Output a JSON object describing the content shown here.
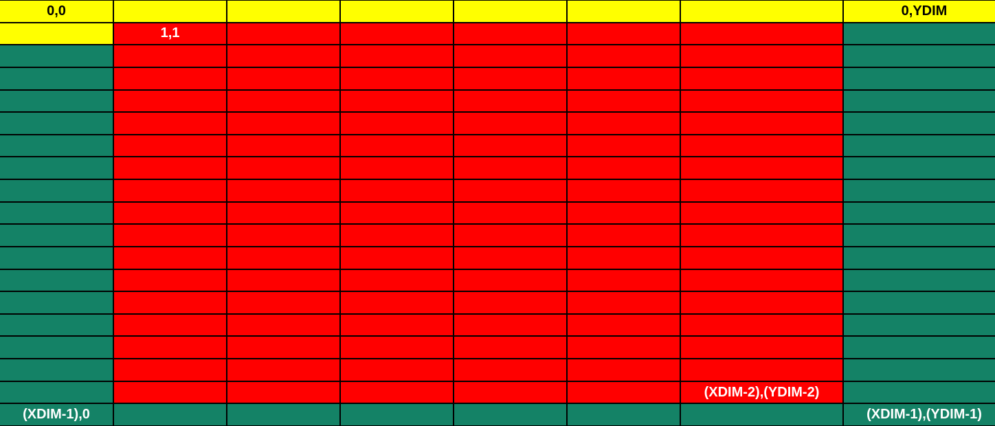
{
  "grid": {
    "rows": 19,
    "cols": 8,
    "colors": {
      "yellow": "#ffff00",
      "red": "#ff0000",
      "green": "#148266",
      "border": "#000000"
    },
    "labels": {
      "top_left": "0,0",
      "top_right": "0,YDIM",
      "first_inner": "1,1",
      "last_inner": "(XDIM-2),(YDIM-2)",
      "bottom_left": "(XDIM-1),0",
      "bottom_right": "(XDIM-1),(YDIM-1)"
    }
  }
}
